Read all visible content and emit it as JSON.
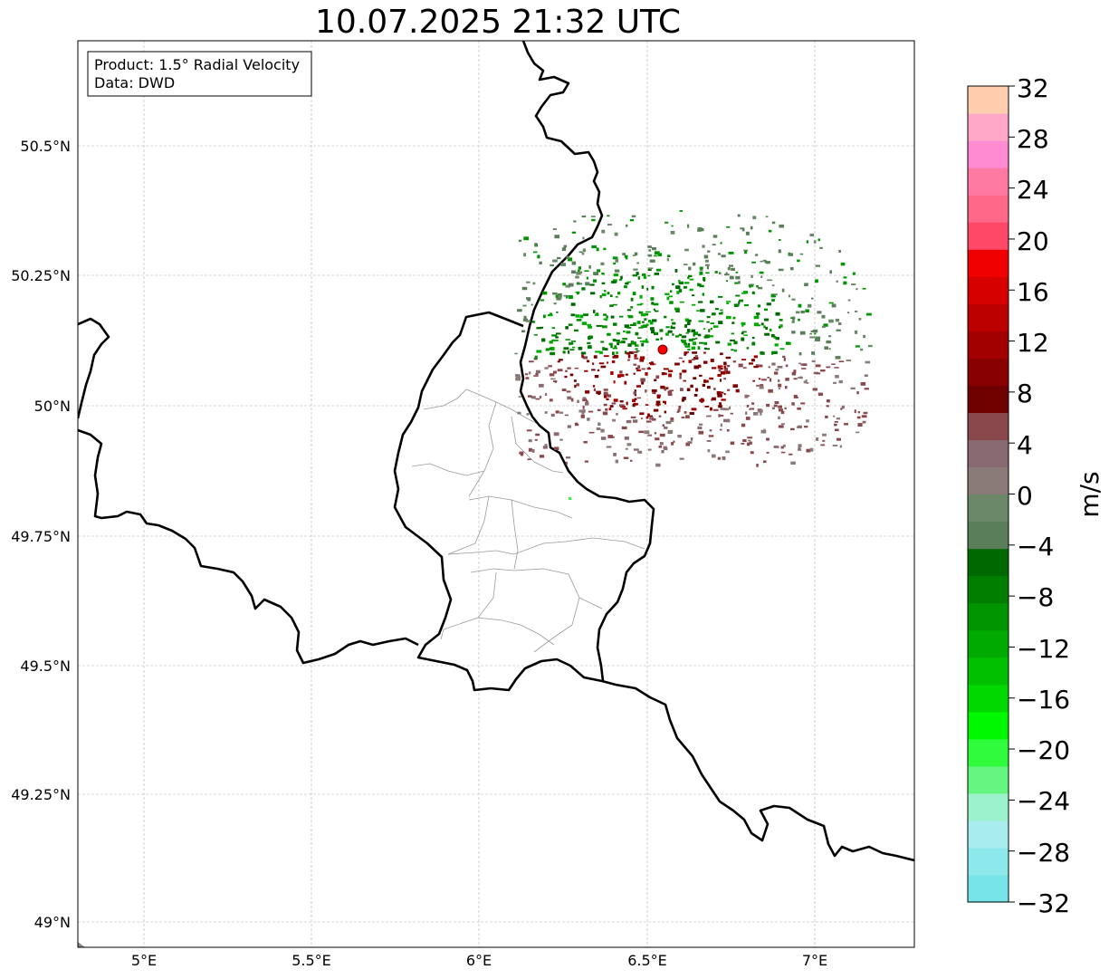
{
  "map": {
    "title": "10.07.2025 21:32 UTC",
    "info": {
      "product": "Product: 1.5° Radial Velocity",
      "source": "Data: DWD"
    },
    "lon_ticks": [
      "5°E",
      "5.5°E",
      "6°E",
      "6.5°E",
      "7°E"
    ],
    "lat_ticks": [
      "50.5°N",
      "50.25°N",
      "50°N",
      "49.75°N",
      "49.5°N",
      "49.25°N",
      "49°N"
    ],
    "extent": {
      "lon": [
        4.8,
        7.3
      ],
      "lat": [
        48.95,
        50.7
      ]
    },
    "radar_site": {
      "lon": 6.55,
      "lat": 50.11,
      "color": "#ff0000"
    }
  },
  "colorbar": {
    "unit": "m/s",
    "ticks": [
      "32",
      "28",
      "24",
      "20",
      "16",
      "12",
      "8",
      "4",
      "0",
      "−4",
      "−8",
      "−12",
      "−16",
      "−20",
      "−24",
      "−28",
      "−32"
    ],
    "range": [
      -32,
      32
    ],
    "colors_bottom_to_top": [
      "#76e4e8",
      "#8ce8ea",
      "#a8ecee",
      "#9cf2cc",
      "#64f680",
      "#30fa3c",
      "#00f800",
      "#00d800",
      "#00c000",
      "#00aa00",
      "#009400",
      "#007e00",
      "#006800",
      "#5a7d5a",
      "#6a8768",
      "#8a7a78",
      "#8a6a72",
      "#88484c",
      "#6e0000",
      "#880000",
      "#a20000",
      "#bc0000",
      "#d60000",
      "#f00000",
      "#ff4868",
      "#ff6888",
      "#ff7aa2",
      "#ff8cd2",
      "#ffa8c8",
      "#ffceae"
    ]
  }
}
